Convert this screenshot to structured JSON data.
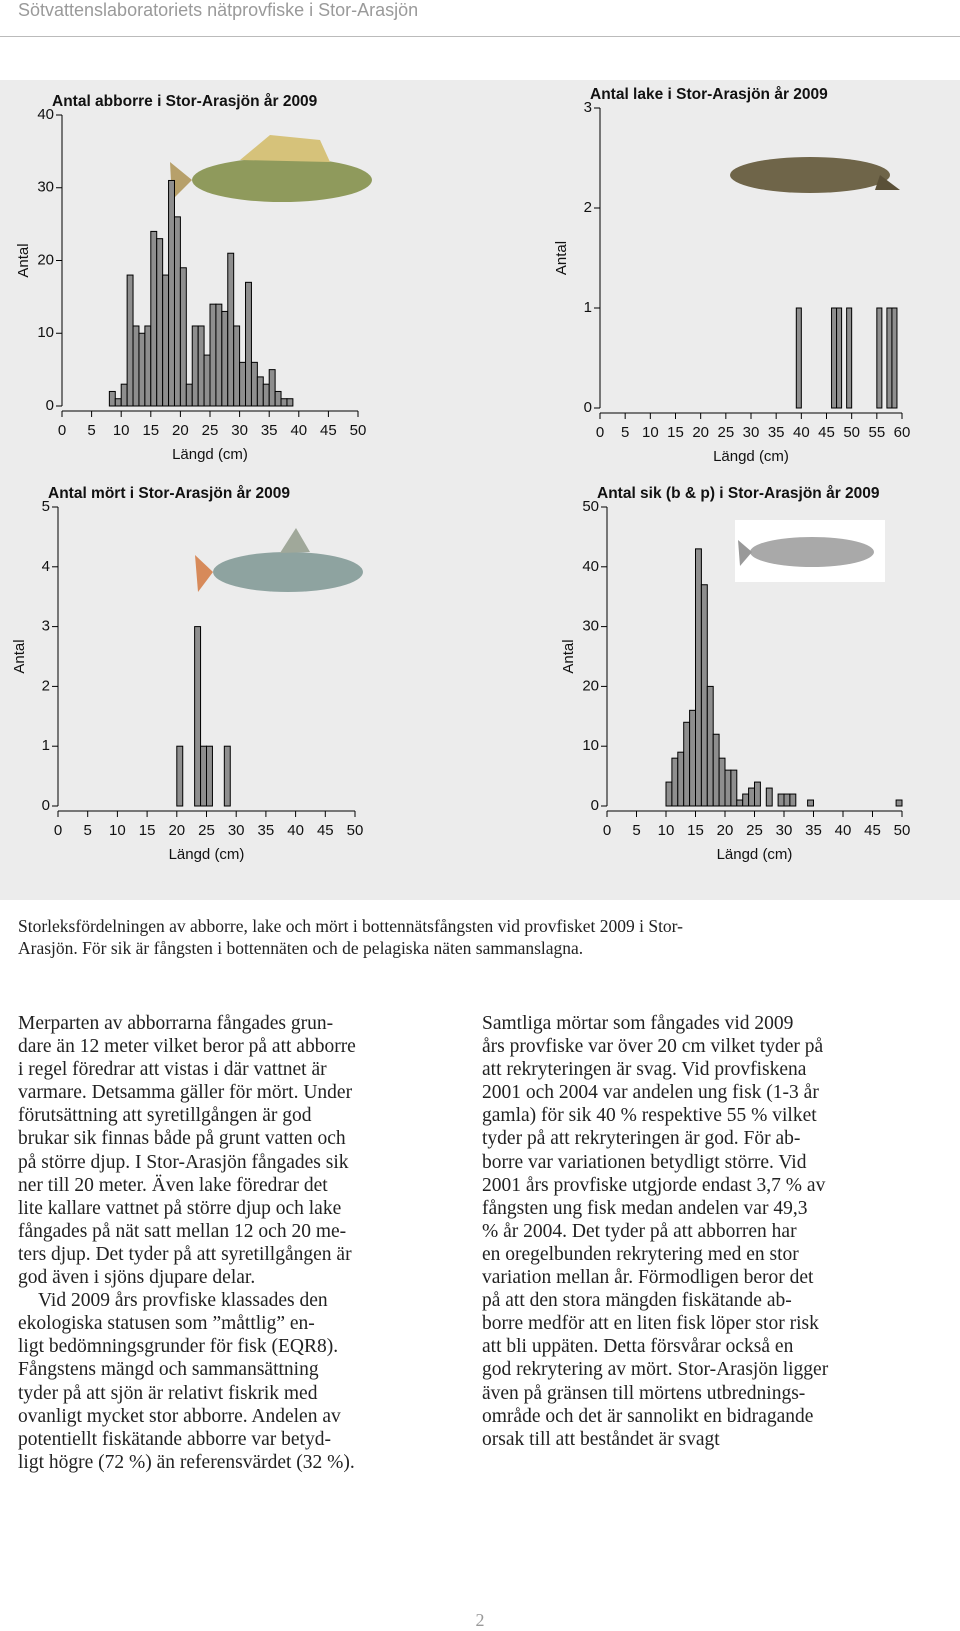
{
  "header": {
    "title": "Sötvattenslaboratoriets nätprovfiske i Stor-Arasjön"
  },
  "chart_data": [
    {
      "type": "histogram",
      "title": "Antal abborre i Stor-Arasjön år 2009",
      "xlabel": "Längd (cm)",
      "ylabel": "Antal",
      "color": "#8e8e8e",
      "bins": [
        8,
        9,
        10,
        11,
        12,
        13,
        14,
        15,
        16,
        17,
        18,
        19,
        20,
        21,
        22,
        23,
        24,
        25,
        26,
        27,
        28,
        29,
        30,
        31,
        32,
        33,
        34,
        35,
        36,
        37,
        38,
        39
      ],
      "values": [
        2,
        1,
        3,
        18,
        11,
        10,
        11,
        24,
        23,
        18,
        31,
        26,
        19,
        3,
        11,
        11,
        7,
        14,
        14,
        13,
        21,
        11,
        6,
        17,
        6,
        4,
        3,
        5,
        2,
        1,
        1
      ],
      "xlim": [
        0,
        50
      ],
      "xticks": [
        0,
        5,
        10,
        15,
        20,
        25,
        30,
        35,
        40,
        45,
        50
      ],
      "ylim": [
        0,
        40
      ],
      "yticks": [
        0,
        10,
        20,
        30,
        40
      ]
    },
    {
      "type": "histogram",
      "title": "Antal lake i Stor-Arasjön år 2009",
      "xlabel": "Längd (cm)",
      "ylabel": "Antal",
      "color": "#8e8e8e",
      "bins": [
        39,
        40,
        41,
        42,
        43,
        44,
        45,
        46,
        47,
        48,
        49,
        50,
        51,
        52,
        53,
        54,
        55,
        56,
        57,
        58,
        59
      ],
      "values": [
        1,
        0,
        0,
        0,
        0,
        0,
        0,
        1,
        1,
        0,
        1,
        0,
        0,
        0,
        0,
        0,
        1,
        0,
        1,
        1
      ],
      "xlim": [
        0,
        60
      ],
      "xticks": [
        0,
        5,
        10,
        15,
        20,
        25,
        30,
        35,
        40,
        45,
        50,
        55,
        60
      ],
      "ylim": [
        0,
        3
      ],
      "yticks": [
        0,
        1,
        2,
        3
      ]
    },
    {
      "type": "histogram",
      "title": "Antal mört i Stor-Arasjön år 2009",
      "xlabel": "Längd (cm)",
      "ylabel": "Antal",
      "color": "#8e8e8e",
      "bins": [
        20,
        21,
        22,
        23,
        24,
        25,
        26,
        27,
        28,
        29
      ],
      "values": [
        1,
        0,
        0,
        3,
        1,
        1,
        0,
        0,
        1
      ],
      "xlim": [
        0,
        50
      ],
      "xticks": [
        0,
        5,
        10,
        15,
        20,
        25,
        30,
        35,
        40,
        45,
        50
      ],
      "ylim": [
        0,
        5
      ],
      "yticks": [
        0,
        1,
        2,
        3,
        4,
        5
      ]
    },
    {
      "type": "histogram",
      "title": "Antal sik (b & p) i Stor-Arasjön år 2009",
      "xlabel": "Längd (cm)",
      "ylabel": "Antal",
      "color": "#8e8e8e",
      "bins": [
        10,
        11,
        12,
        13,
        14,
        15,
        16,
        17,
        18,
        19,
        20,
        21,
        22,
        23,
        24,
        25,
        26,
        27,
        28,
        29,
        30,
        31,
        32,
        33,
        34,
        35,
        36,
        37,
        38,
        39,
        40,
        41,
        42,
        43,
        44,
        45,
        46,
        47,
        48,
        49,
        50
      ],
      "values": [
        4,
        8,
        9,
        14,
        16,
        43,
        37,
        20,
        12,
        8,
        6,
        6,
        1,
        2,
        3,
        4,
        0,
        3,
        0,
        2,
        2,
        2,
        0,
        0,
        1,
        0,
        0,
        0,
        0,
        0,
        0,
        0,
        0,
        0,
        0,
        0,
        0,
        0,
        0,
        1
      ],
      "xlim": [
        0,
        50
      ],
      "xticks": [
        0,
        5,
        10,
        15,
        20,
        25,
        30,
        35,
        40,
        45,
        50
      ],
      "ylim": [
        0,
        50
      ],
      "yticks": [
        0,
        10,
        20,
        30,
        40,
        50
      ]
    }
  ],
  "caption": {
    "lines": [
      "Storleksfördelningen av abborre, lake och mört i bottennätsfångsten vid provfisket 2009 i Stor-",
      "Arasjön. För sik är fångsten i bottennäten och de pelagiska näten sammanslagna."
    ]
  },
  "columns": [
    {
      "paragraphs": [
        {
          "lines": [
            "Merparten av abborrarna fångades grun-",
            "dare än 12 meter vilket beror på att abborre",
            "i regel föredrar att vistas i där vattnet är",
            "varmare. Detsamma gäller för mört. Under",
            "förutsättning att syretillgången är god",
            "brukar sik finnas både på grunt vatten och",
            "på större djup. I Stor-Arasjön fångades sik",
            "ner till 20 meter. Även lake föredrar det",
            "lite kallare vattnet på större djup och lake",
            "fångades på nät satt mellan 12 och 20 me-",
            "ters djup. Det tyder på att syretillgången är",
            "god även i sjöns djupare delar."
          ]
        },
        {
          "lines": [
            "Vid 2009 års provfiske klassades den",
            "ekologiska statusen som ”måttlig” en-",
            "ligt bedömningsgrunder för fisk (EQR8).",
            "Fångstens mängd och sammansättning",
            "tyder på att sjön är relativt fiskrik med",
            "ovanligt mycket stor abborre. Andelen av",
            "potentiellt fiskätande abborre var betyd-",
            "ligt högre (72 %) än referensvärdet (32 %)."
          ]
        }
      ]
    },
    {
      "paragraphs": [
        {
          "lines": [
            "Samtliga mörtar som fångades vid 2009",
            "års provfiske var över 20 cm vilket tyder på",
            "att rekryteringen är svag. Vid provfiskena",
            "2001 och 2004 var andelen ung fisk (1-3 år",
            "gamla) för sik 40 % respektive 55 % vilket",
            "tyder på att rekryteringen är god. För ab-",
            "borre var variationen betydligt större. Vid",
            "2001 års provfiske utgjorde endast 3,7 % av",
            "fångsten ung fisk medan andelen var 49,3",
            "% år 2004. Det tyder på att abborren har",
            "en oregelbunden rekrytering med en stor",
            "variation mellan år. Förmodligen beror det",
            "på att den stora mängden fiskätande ab-",
            "borre medför att en liten fisk löper stor risk",
            "att bli uppäten. Detta försvårar också en",
            "god rekrytering av mört. Stor-Arasjön ligger",
            "även på gränsen till mörtens utbrednings-",
            "område och det är sannolikt en bidragande",
            "orsak till att beståndet är svagt"
          ]
        }
      ]
    }
  ],
  "page_number": "2"
}
